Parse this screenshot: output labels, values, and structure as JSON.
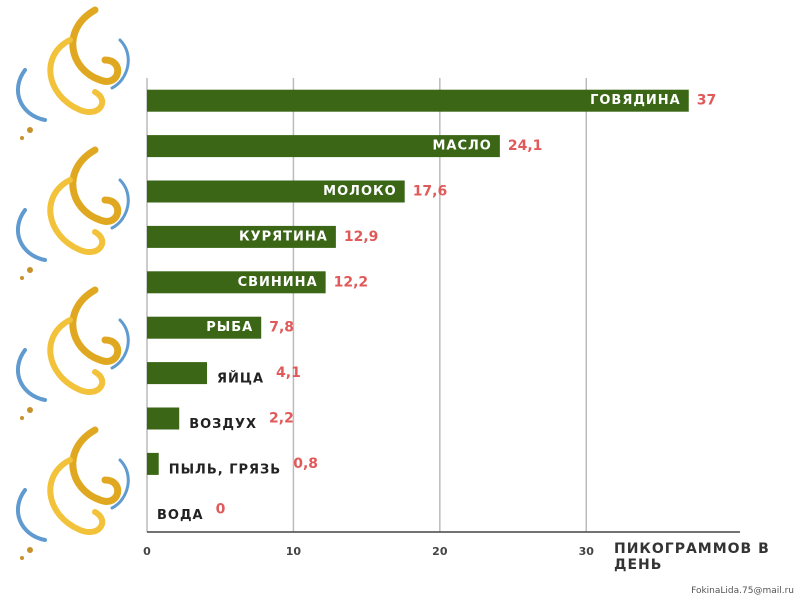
{
  "chart_data": {
    "type": "bar",
    "orientation": "horizontal",
    "categories": [
      "ГОВЯДИНА",
      "МАСЛО",
      "МОЛОКО",
      "КУРЯТИНА",
      "СВИНИНА",
      "РЫБА",
      "ЯЙЦА",
      "ВОЗДУХ",
      "ПЫЛЬ, ГРЯЗЬ",
      "ВОДА"
    ],
    "values": [
      37,
      24.1,
      17.6,
      12.9,
      12.2,
      7.8,
      4.1,
      2.2,
      0.8,
      0
    ],
    "value_labels": [
      "37",
      "24,1",
      "17,6",
      "12,9",
      "12,2",
      "7,8",
      "4,1",
      "2,2",
      "0,8",
      "0"
    ],
    "color": "#3a6616",
    "label_color": "#e05a5a",
    "xlim": [
      0,
      40.5
    ],
    "xticks": [
      0,
      10,
      20,
      30
    ],
    "grid": true,
    "x_label": "ПИКОГРАММОВ В ДЕНЬ"
  },
  "footer": {
    "email": "FokinaLida.75@mail.ru"
  }
}
